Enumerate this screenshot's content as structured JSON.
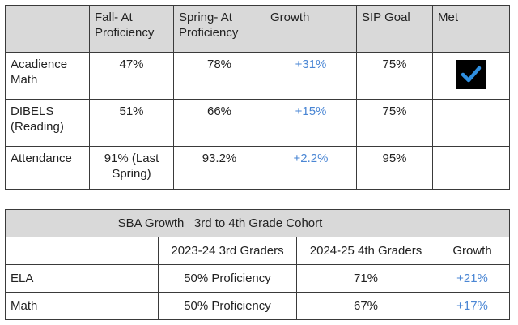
{
  "proficiency_table": {
    "headers": [
      "",
      "Fall- At Proficiency",
      "Spring- At Proficiency",
      "Growth",
      "SIP Goal",
      "Met"
    ],
    "rows": [
      {
        "label": "Acadience Math",
        "fall": "47%",
        "spring": "78%",
        "growth": "+31%",
        "goal": "75%",
        "met": true
      },
      {
        "label": "DIBELS (Reading)",
        "fall": "51%",
        "spring": "66%",
        "growth": "+15%",
        "goal": "75%",
        "met": false
      },
      {
        "label": "Attendance",
        "fall": "91% (Last Spring)",
        "spring": "93.2%",
        "growth": "+2.2%",
        "goal": "95%",
        "met": false
      }
    ],
    "met_icon": "checkmark-icon",
    "growth_color": "#4a86d4"
  },
  "sba_table": {
    "title": "SBA Growth   3rd to 4th Grade Cohort",
    "headers": [
      "",
      "2023-24 3rd Graders",
      "2024-25 4th Graders",
      "Growth"
    ],
    "rows": [
      {
        "label": "ELA",
        "grade3": "50% Proficiency",
        "grade4": "71%",
        "growth": "+21%"
      },
      {
        "label": "Math",
        "grade3": "50% Proficiency",
        "grade4": "67%",
        "growth": "+17%"
      }
    ]
  }
}
